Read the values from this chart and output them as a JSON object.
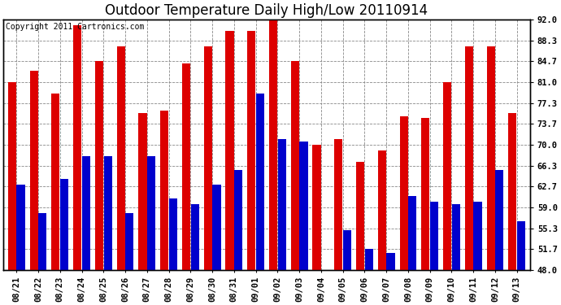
{
  "title": "Outdoor Temperature Daily High/Low 20110914",
  "copyright": "Copyright 2011 Cartronics.com",
  "categories": [
    "08/21",
    "08/22",
    "08/23",
    "08/24",
    "08/25",
    "08/26",
    "08/27",
    "08/28",
    "08/29",
    "08/30",
    "08/31",
    "09/01",
    "09/02",
    "09/03",
    "09/04",
    "09/05",
    "09/06",
    "09/07",
    "09/08",
    "09/09",
    "09/10",
    "09/11",
    "09/12",
    "09/13"
  ],
  "highs": [
    81.0,
    83.0,
    79.0,
    91.0,
    84.7,
    87.3,
    75.5,
    76.0,
    84.3,
    87.3,
    90.0,
    90.0,
    92.0,
    84.7,
    70.0,
    71.0,
    67.0,
    69.0,
    75.0,
    74.7,
    81.0,
    87.3,
    87.3,
    75.5
  ],
  "lows": [
    63.0,
    58.0,
    64.0,
    68.0,
    68.0,
    58.0,
    68.0,
    60.5,
    59.5,
    63.0,
    65.5,
    79.0,
    71.0,
    70.5,
    48.0,
    55.0,
    51.7,
    51.0,
    61.0,
    60.0,
    59.5,
    60.0,
    65.5,
    56.5
  ],
  "bar_color_high": "#dd0000",
  "bar_color_low": "#0000cc",
  "background_color": "#ffffff",
  "plot_bg_color": "#ffffff",
  "yticks": [
    48.0,
    51.7,
    55.3,
    59.0,
    62.7,
    66.3,
    70.0,
    73.7,
    77.3,
    81.0,
    84.7,
    88.3,
    92.0
  ],
  "ylim": [
    48.0,
    92.0
  ],
  "ybaseline": 48.0,
  "grid_color": "#888888",
  "title_fontsize": 12,
  "tick_fontsize": 7.5,
  "copyright_fontsize": 7.0,
  "bar_width": 0.38,
  "bar_gap": 0.02
}
